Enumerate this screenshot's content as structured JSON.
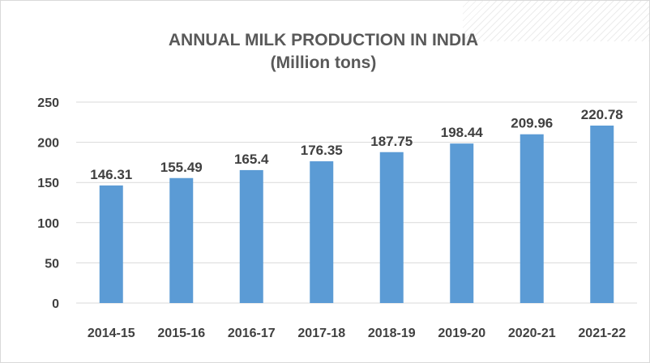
{
  "chart_data": {
    "type": "bar",
    "title": "ANNUAL MILK PRODUCTION IN INDIA",
    "subtitle": "(Million tons)",
    "categories": [
      "2014-15",
      "2015-16",
      "2016-17",
      "2017-18",
      "2018-19",
      "2019-20",
      "2020-21",
      "2021-22"
    ],
    "values": [
      146.31,
      155.49,
      165.4,
      176.35,
      187.75,
      198.44,
      209.96,
      220.78
    ],
    "data_labels": [
      "146.31",
      "155.49",
      "165.4",
      "176.35",
      "187.75",
      "198.44",
      "209.96",
      "220.78"
    ],
    "y_ticks": [
      0,
      50,
      100,
      150,
      200,
      250
    ],
    "ylim": [
      0,
      250
    ],
    "xlabel": "",
    "ylabel": "",
    "grid": true,
    "legend": "none",
    "bar_color": "#5b9bd5",
    "grid_color": "#d9d9d9"
  }
}
